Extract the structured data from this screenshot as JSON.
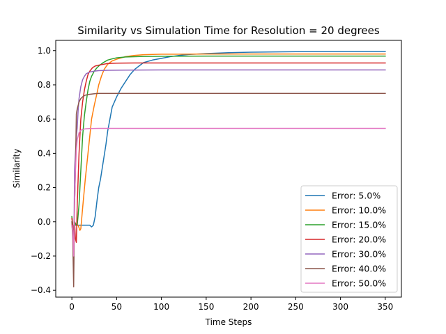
{
  "chart_data": {
    "type": "line",
    "title": "Similarity vs Simulation Time for Resolution = 20 degrees",
    "xlabel": "Time Steps",
    "ylabel": "Similarity",
    "xlim": [
      -18,
      368
    ],
    "ylim": [
      -0.44,
      1.06
    ],
    "xticks": [
      0,
      50,
      100,
      150,
      200,
      250,
      300,
      350
    ],
    "yticks": [
      -0.4,
      -0.2,
      0.0,
      0.2,
      0.4,
      0.6,
      0.8,
      1.0
    ],
    "ytick_labels": [
      "−0.4",
      "−0.2",
      "0.0",
      "0.2",
      "0.4",
      "0.6",
      "0.8",
      "1.0"
    ],
    "grid": false,
    "legend_position": "lower-right",
    "series": [
      {
        "name": "Error: 5.0%",
        "color": "#1f77b4",
        "points": [
          [
            0,
            0.03
          ],
          [
            1,
            -0.02
          ],
          [
            2,
            -0.12
          ],
          [
            3,
            -0.02
          ],
          [
            5,
            -0.02
          ],
          [
            10,
            -0.02
          ],
          [
            15,
            -0.02
          ],
          [
            20,
            -0.02
          ],
          [
            22,
            -0.03
          ],
          [
            24,
            -0.02
          ],
          [
            26,
            0.03
          ],
          [
            28,
            0.12
          ],
          [
            30,
            0.2
          ],
          [
            32,
            0.25
          ],
          [
            35,
            0.35
          ],
          [
            38,
            0.45
          ],
          [
            40,
            0.53
          ],
          [
            45,
            0.67
          ],
          [
            50,
            0.73
          ],
          [
            55,
            0.78
          ],
          [
            60,
            0.82
          ],
          [
            65,
            0.86
          ],
          [
            70,
            0.89
          ],
          [
            75,
            0.91
          ],
          [
            80,
            0.93
          ],
          [
            90,
            0.945
          ],
          [
            100,
            0.955
          ],
          [
            110,
            0.965
          ],
          [
            120,
            0.972
          ],
          [
            130,
            0.977
          ],
          [
            150,
            0.983
          ],
          [
            175,
            0.988
          ],
          [
            200,
            0.991
          ],
          [
            250,
            0.994
          ],
          [
            300,
            0.995
          ],
          [
            350,
            0.996
          ]
        ]
      },
      {
        "name": "Error: 10.0%",
        "color": "#ff7f0e",
        "points": [
          [
            0,
            0.03
          ],
          [
            1,
            -0.02
          ],
          [
            2,
            -0.1
          ],
          [
            3,
            0.0
          ],
          [
            5,
            -0.02
          ],
          [
            7,
            -0.02
          ],
          [
            9,
            -0.05
          ],
          [
            10,
            -0.04
          ],
          [
            12,
            0.08
          ],
          [
            15,
            0.25
          ],
          [
            18,
            0.4
          ],
          [
            20,
            0.5
          ],
          [
            22,
            0.6
          ],
          [
            25,
            0.68
          ],
          [
            28,
            0.75
          ],
          [
            30,
            0.8
          ],
          [
            33,
            0.85
          ],
          [
            36,
            0.89
          ],
          [
            40,
            0.92
          ],
          [
            45,
            0.94
          ],
          [
            50,
            0.95
          ],
          [
            60,
            0.965
          ],
          [
            70,
            0.972
          ],
          [
            80,
            0.976
          ],
          [
            100,
            0.979
          ],
          [
            150,
            0.98
          ],
          [
            200,
            0.98
          ],
          [
            250,
            0.98
          ],
          [
            300,
            0.98
          ],
          [
            350,
            0.98
          ]
        ]
      },
      {
        "name": "Error: 15.0%",
        "color": "#2ca02c",
        "points": [
          [
            0,
            0.03
          ],
          [
            1,
            -0.02
          ],
          [
            2,
            -0.12
          ],
          [
            3,
            0.0
          ],
          [
            5,
            -0.02
          ],
          [
            6,
            -0.02
          ],
          [
            8,
            0.1
          ],
          [
            10,
            0.3
          ],
          [
            12,
            0.5
          ],
          [
            14,
            0.62
          ],
          [
            16,
            0.7
          ],
          [
            18,
            0.77
          ],
          [
            20,
            0.82
          ],
          [
            22,
            0.85
          ],
          [
            25,
            0.88
          ],
          [
            28,
            0.9
          ],
          [
            30,
            0.91
          ],
          [
            35,
            0.93
          ],
          [
            40,
            0.945
          ],
          [
            45,
            0.952
          ],
          [
            50,
            0.958
          ],
          [
            60,
            0.963
          ],
          [
            80,
            0.966
          ],
          [
            100,
            0.967
          ],
          [
            150,
            0.968
          ],
          [
            200,
            0.968
          ],
          [
            250,
            0.968
          ],
          [
            300,
            0.968
          ],
          [
            350,
            0.968
          ]
        ]
      },
      {
        "name": "Error: 20.0%",
        "color": "#d62728",
        "points": [
          [
            0,
            0.02
          ],
          [
            1,
            -0.02
          ],
          [
            2,
            -0.15
          ],
          [
            3,
            0.0
          ],
          [
            4,
            -0.1
          ],
          [
            5,
            -0.12
          ],
          [
            6,
            0.1
          ],
          [
            8,
            0.4
          ],
          [
            10,
            0.6
          ],
          [
            12,
            0.7
          ],
          [
            14,
            0.77
          ],
          [
            16,
            0.82
          ],
          [
            18,
            0.86
          ],
          [
            20,
            0.88
          ],
          [
            23,
            0.9
          ],
          [
            26,
            0.91
          ],
          [
            30,
            0.915
          ],
          [
            35,
            0.92
          ],
          [
            40,
            0.925
          ],
          [
            50,
            0.927
          ],
          [
            70,
            0.928
          ],
          [
            100,
            0.928
          ],
          [
            200,
            0.928
          ],
          [
            350,
            0.928
          ]
        ]
      },
      {
        "name": "Error: 30.0%",
        "color": "#9467bd",
        "points": [
          [
            0,
            -0.02
          ],
          [
            1,
            -0.05
          ],
          [
            2,
            -0.3
          ],
          [
            3,
            0.3
          ],
          [
            4,
            0.4
          ],
          [
            5,
            0.5
          ],
          [
            6,
            0.55
          ],
          [
            7,
            0.65
          ],
          [
            8,
            0.72
          ],
          [
            10,
            0.79
          ],
          [
            12,
            0.83
          ],
          [
            14,
            0.85
          ],
          [
            16,
            0.865
          ],
          [
            20,
            0.875
          ],
          [
            25,
            0.88
          ],
          [
            30,
            0.883
          ],
          [
            40,
            0.885
          ],
          [
            60,
            0.886
          ],
          [
            100,
            0.887
          ],
          [
            200,
            0.887
          ],
          [
            350,
            0.887
          ]
        ]
      },
      {
        "name": "Error: 40.0%",
        "color": "#8c564b",
        "points": [
          [
            0,
            0.0
          ],
          [
            1,
            -0.1
          ],
          [
            2,
            -0.38
          ],
          [
            3,
            0.1
          ],
          [
            4,
            0.3
          ],
          [
            5,
            0.63
          ],
          [
            6,
            0.66
          ],
          [
            8,
            0.7
          ],
          [
            10,
            0.72
          ],
          [
            12,
            0.73
          ],
          [
            15,
            0.74
          ],
          [
            20,
            0.745
          ],
          [
            25,
            0.748
          ],
          [
            30,
            0.75
          ],
          [
            50,
            0.75
          ],
          [
            100,
            0.75
          ],
          [
            200,
            0.75
          ],
          [
            350,
            0.75
          ]
        ]
      },
      {
        "name": "Error: 50.0%",
        "color": "#e377c2",
        "points": [
          [
            0,
            -0.02
          ],
          [
            1,
            -0.05
          ],
          [
            2,
            -0.2
          ],
          [
            3,
            0.1
          ],
          [
            4,
            0.3
          ],
          [
            5,
            0.42
          ],
          [
            6,
            0.48
          ],
          [
            8,
            0.52
          ],
          [
            10,
            0.535
          ],
          [
            12,
            0.54
          ],
          [
            15,
            0.543
          ],
          [
            20,
            0.545
          ],
          [
            30,
            0.546
          ],
          [
            50,
            0.546
          ],
          [
            100,
            0.546
          ],
          [
            200,
            0.546
          ],
          [
            350,
            0.546
          ]
        ]
      }
    ]
  }
}
